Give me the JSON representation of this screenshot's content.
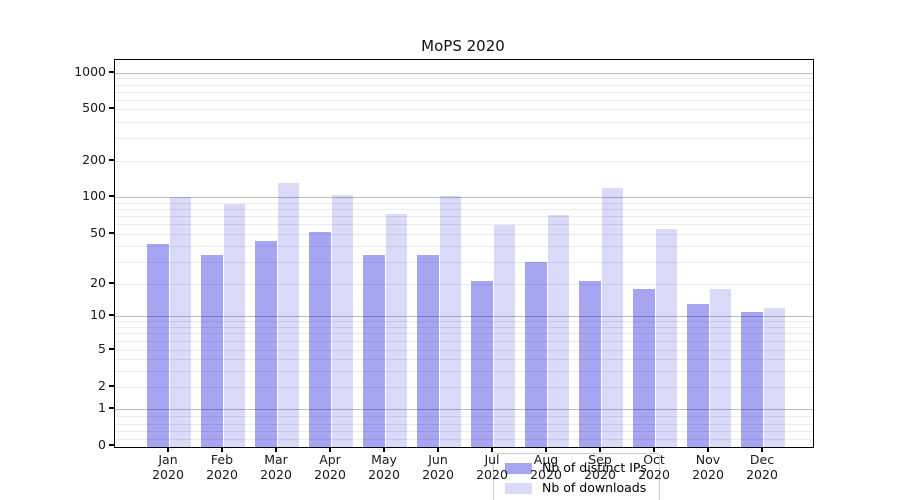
{
  "title": "MoPS 2020",
  "legend": {
    "items": [
      {
        "label": "Nb of distinct IPs",
        "color": "#a5a5f2"
      },
      {
        "label": "Nb of downloads",
        "color": "#d9d9f8"
      }
    ]
  },
  "y_axis": {
    "tick_values": [
      0,
      1,
      2,
      5,
      10,
      20,
      50,
      100,
      200,
      500,
      1000
    ],
    "tick_labels": [
      "0",
      "1",
      "2",
      "5",
      "10",
      "20",
      "50",
      "100",
      "200",
      "500",
      "1000"
    ]
  },
  "x_axis": {
    "months": [
      {
        "month": "Jan",
        "year": "2020"
      },
      {
        "month": "Feb",
        "year": "2020"
      },
      {
        "month": "Mar",
        "year": "2020"
      },
      {
        "month": "Apr",
        "year": "2020"
      },
      {
        "month": "May",
        "year": "2020"
      },
      {
        "month": "Jun",
        "year": "2020"
      },
      {
        "month": "Jul",
        "year": "2020"
      },
      {
        "month": "Aug",
        "year": "2020"
      },
      {
        "month": "Sep",
        "year": "2020"
      },
      {
        "month": "Oct",
        "year": "2020"
      },
      {
        "month": "Nov",
        "year": "2020"
      },
      {
        "month": "Dec",
        "year": "2020"
      }
    ]
  },
  "chart_data": {
    "type": "bar",
    "title": "MoPS 2020",
    "categories": [
      "Jan 2020",
      "Feb 2020",
      "Mar 2020",
      "Apr 2020",
      "May 2020",
      "Jun 2020",
      "Jul 2020",
      "Aug 2020",
      "Sep 2020",
      "Oct 2020",
      "Nov 2020",
      "Dec 2020"
    ],
    "series": [
      {
        "name": "Nb of distinct IPs",
        "color": "#a5a5f2",
        "values": [
          42,
          34,
          44,
          52,
          34,
          34,
          21,
          30,
          21,
          18,
          13,
          11
        ]
      },
      {
        "name": "Nb of downloads",
        "color": "#d9d9f8",
        "values": [
          100,
          88,
          130,
          104,
          73,
          102,
          59,
          72,
          120,
          55,
          18,
          12
        ]
      }
    ],
    "yscale": "symlog",
    "ylim": [
      0,
      1300
    ],
    "yticks": [
      0,
      1,
      2,
      5,
      10,
      20,
      50,
      100,
      200,
      500,
      1000
    ],
    "xlabel": "",
    "ylabel": "",
    "grid": true,
    "legend_position": "lower center (inside plot)"
  },
  "colors": {
    "major_grid": "rgba(0,0,0,0.25)",
    "minor_grid": "rgba(0,0,0,0.08)",
    "spine": "#000000",
    "background": "#ffffff"
  }
}
